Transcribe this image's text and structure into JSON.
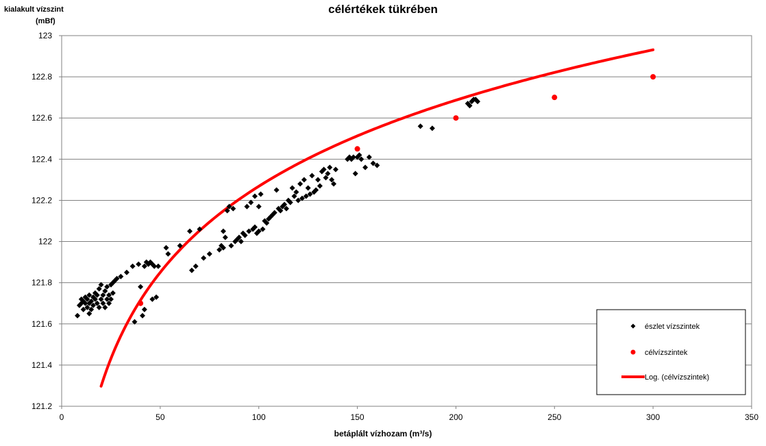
{
  "chart_data": {
    "type": "scatter",
    "title": "célértékek tükrében",
    "ylabel_line1": "kialakult vízszint",
    "ylabel_line2": "(mBf)",
    "xlabel": "betáplált vízhozam (m³/s)",
    "xlim": [
      0,
      350
    ],
    "ylim": [
      121.2,
      123
    ],
    "xticks": [
      0,
      50,
      100,
      150,
      200,
      250,
      300,
      350
    ],
    "yticks": [
      121.2,
      121.4,
      121.6,
      121.8,
      122,
      122.2,
      122.4,
      122.6,
      122.8,
      123
    ],
    "ytick_labels": [
      "121.2",
      "121.4",
      "121.6",
      "121.8",
      "122",
      "122.2",
      "122.4",
      "122.6",
      "122.8",
      "123"
    ],
    "grid": "horizontal",
    "legend_position": "bottom-right",
    "series": [
      {
        "name": "észlet vízszintek",
        "kind": "scatter",
        "color": "#000000",
        "points": [
          [
            8,
            121.64
          ],
          [
            9,
            121.69
          ],
          [
            10,
            121.7
          ],
          [
            10,
            121.72
          ],
          [
            11,
            121.67
          ],
          [
            11,
            121.71
          ],
          [
            12,
            121.7
          ],
          [
            12,
            121.73
          ],
          [
            13,
            121.68
          ],
          [
            13,
            121.72
          ],
          [
            14,
            121.65
          ],
          [
            14,
            121.7
          ],
          [
            14,
            121.74
          ],
          [
            15,
            121.71
          ],
          [
            15,
            121.67
          ],
          [
            16,
            121.73
          ],
          [
            16,
            121.69
          ],
          [
            17,
            121.72
          ],
          [
            17,
            121.75
          ],
          [
            18,
            121.7
          ],
          [
            18,
            121.74
          ],
          [
            19,
            121.68
          ],
          [
            19,
            121.77
          ],
          [
            20,
            121.72
          ],
          [
            20,
            121.79
          ],
          [
            21,
            121.7
          ],
          [
            21,
            121.74
          ],
          [
            22,
            121.68
          ],
          [
            22,
            121.76
          ],
          [
            23,
            121.72
          ],
          [
            23,
            121.78
          ],
          [
            24,
            121.7
          ],
          [
            24,
            121.74
          ],
          [
            25,
            121.79
          ],
          [
            25,
            121.72
          ],
          [
            26,
            121.8
          ],
          [
            26,
            121.75
          ],
          [
            27,
            121.81
          ],
          [
            28,
            121.82
          ],
          [
            30,
            121.83
          ],
          [
            33,
            121.85
          ],
          [
            36,
            121.88
          ],
          [
            37,
            121.61
          ],
          [
            39,
            121.89
          ],
          [
            40,
            121.78
          ],
          [
            41,
            121.64
          ],
          [
            42,
            121.88
          ],
          [
            42,
            121.67
          ],
          [
            43,
            121.9
          ],
          [
            44,
            121.89
          ],
          [
            45,
            121.9
          ],
          [
            46,
            121.89
          ],
          [
            46,
            121.72
          ],
          [
            47,
            121.88
          ],
          [
            48,
            121.73
          ],
          [
            49,
            121.88
          ],
          [
            53,
            121.97
          ],
          [
            54,
            121.94
          ],
          [
            60,
            121.98
          ],
          [
            65,
            122.05
          ],
          [
            66,
            121.86
          ],
          [
            68,
            121.88
          ],
          [
            70,
            122.06
          ],
          [
            72,
            121.92
          ],
          [
            75,
            121.94
          ],
          [
            80,
            121.96
          ],
          [
            81,
            121.98
          ],
          [
            82,
            121.97
          ],
          [
            82,
            122.05
          ],
          [
            83,
            122.02
          ],
          [
            84,
            122.15
          ],
          [
            85,
            122.17
          ],
          [
            86,
            121.98
          ],
          [
            87,
            122.16
          ],
          [
            88,
            122.0
          ],
          [
            89,
            122.01
          ],
          [
            90,
            122.02
          ],
          [
            91,
            122.0
          ],
          [
            92,
            122.04
          ],
          [
            93,
            122.03
          ],
          [
            94,
            122.17
          ],
          [
            95,
            122.05
          ],
          [
            96,
            122.19
          ],
          [
            97,
            122.06
          ],
          [
            98,
            122.07
          ],
          [
            98,
            122.22
          ],
          [
            99,
            122.04
          ],
          [
            100,
            122.05
          ],
          [
            100,
            122.17
          ],
          [
            101,
            122.23
          ],
          [
            102,
            122.06
          ],
          [
            103,
            122.1
          ],
          [
            104,
            122.09
          ],
          [
            105,
            122.11
          ],
          [
            106,
            122.12
          ],
          [
            107,
            122.13
          ],
          [
            108,
            122.14
          ],
          [
            109,
            122.25
          ],
          [
            110,
            122.16
          ],
          [
            111,
            122.15
          ],
          [
            112,
            122.17
          ],
          [
            113,
            122.18
          ],
          [
            114,
            122.16
          ],
          [
            115,
            122.2
          ],
          [
            116,
            122.19
          ],
          [
            117,
            122.26
          ],
          [
            118,
            122.22
          ],
          [
            119,
            122.24
          ],
          [
            120,
            122.2
          ],
          [
            121,
            122.28
          ],
          [
            122,
            122.21
          ],
          [
            123,
            122.3
          ],
          [
            124,
            122.22
          ],
          [
            125,
            122.26
          ],
          [
            126,
            122.23
          ],
          [
            127,
            122.32
          ],
          [
            128,
            122.24
          ],
          [
            129,
            122.25
          ],
          [
            130,
            122.3
          ],
          [
            131,
            122.27
          ],
          [
            132,
            122.34
          ],
          [
            133,
            122.35
          ],
          [
            134,
            122.31
          ],
          [
            135,
            122.33
          ],
          [
            136,
            122.36
          ],
          [
            137,
            122.3
          ],
          [
            138,
            122.28
          ],
          [
            139,
            122.35
          ],
          [
            145,
            122.4
          ],
          [
            146,
            122.41
          ],
          [
            147,
            122.4
          ],
          [
            148,
            122.41
          ],
          [
            149,
            122.33
          ],
          [
            150,
            122.41
          ],
          [
            151,
            122.42
          ],
          [
            152,
            122.4
          ],
          [
            154,
            122.36
          ],
          [
            156,
            122.41
          ],
          [
            158,
            122.38
          ],
          [
            160,
            122.37
          ],
          [
            182,
            122.56
          ],
          [
            188,
            122.55
          ],
          [
            206,
            122.67
          ],
          [
            207,
            122.66
          ],
          [
            208,
            122.68
          ],
          [
            209,
            122.69
          ],
          [
            210,
            122.69
          ],
          [
            211,
            122.68
          ]
        ]
      },
      {
        "name": "célvízszintek",
        "kind": "scatter",
        "color": "#ff0000",
        "points": [
          [
            40,
            121.7
          ],
          [
            150,
            122.45
          ],
          [
            200,
            122.6
          ],
          [
            250,
            122.7
          ],
          [
            300,
            122.8
          ]
        ]
      },
      {
        "name": "Log. (célvízszintek)",
        "kind": "line",
        "color": "#ff0000",
        "formula": "y = a + b*ln(x)",
        "a": 119.49,
        "b": 0.6033,
        "x_range": [
          20,
          300
        ]
      }
    ]
  }
}
